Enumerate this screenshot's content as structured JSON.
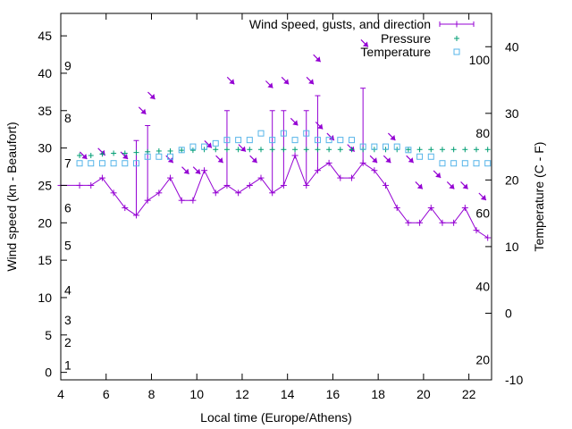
{
  "chart_data": {
    "type": "line",
    "title": "",
    "xlabel": "Local time (Europe/Athens)",
    "ylabel": "Wind speed (kn - Beaufort)",
    "y2label": "Temperature (C - F)",
    "xlim": [
      4,
      23
    ],
    "ylim": [
      -1,
      48
    ],
    "y2lim": [
      -10,
      45
    ],
    "grid": false,
    "legend_position": "top-right",
    "x_ticks": [
      4,
      6,
      8,
      10,
      12,
      14,
      16,
      18,
      20,
      22
    ],
    "y_ticks": [
      0,
      5,
      10,
      15,
      20,
      25,
      30,
      35,
      40,
      45
    ],
    "y2_ticks": [
      -10,
      0,
      10,
      20,
      30,
      40
    ],
    "beaufort_labels": [
      {
        "text": "1",
        "y": 1
      },
      {
        "text": "2",
        "y": 4
      },
      {
        "text": "3",
        "y": 7
      },
      {
        "text": "4",
        "y": 11
      },
      {
        "text": "5",
        "y": 17
      },
      {
        "text": "6",
        "y": 22
      },
      {
        "text": "7",
        "y": 28
      },
      {
        "text": "8",
        "y": 34
      },
      {
        "text": "9",
        "y": 41
      }
    ],
    "fahrenheit_labels": [
      {
        "text": "20",
        "y": -7
      },
      {
        "text": "40",
        "y": 4
      },
      {
        "text": "60",
        "y": 15
      },
      {
        "text": "80",
        "y": 27
      },
      {
        "text": "100",
        "y": 38
      }
    ],
    "series": [
      {
        "name": "Wind speed, gusts, and direction",
        "color": "#9400d3",
        "x": [
          4,
          4.83,
          5.33,
          5.83,
          6.33,
          6.83,
          7.33,
          7.83,
          8.33,
          8.83,
          9.33,
          9.83,
          10.33,
          10.83,
          11.33,
          11.83,
          12.33,
          12.83,
          13.33,
          13.83,
          14.33,
          14.83,
          15.33,
          15.83,
          16.33,
          16.83,
          17.33,
          17.83,
          18.33,
          18.83,
          19.33,
          19.83,
          20.33,
          20.83,
          21.33,
          21.83,
          22.33,
          22.83
        ],
        "values": [
          25,
          25,
          25,
          26,
          24,
          22,
          21,
          23,
          24,
          26,
          23,
          23,
          27,
          24,
          25,
          24,
          25,
          26,
          24,
          25,
          29,
          25,
          27,
          28,
          26,
          26,
          28,
          27,
          25,
          22,
          20,
          20,
          22,
          20,
          20,
          22,
          19,
          18
        ],
        "gusts": [
          null,
          null,
          null,
          null,
          null,
          null,
          31,
          33,
          null,
          null,
          null,
          null,
          null,
          null,
          35,
          null,
          null,
          null,
          35,
          35,
          null,
          35,
          37,
          null,
          null,
          null,
          38,
          null,
          null,
          null,
          null,
          null,
          null,
          null,
          null,
          null,
          null,
          null
        ]
      },
      {
        "name": "Pressure",
        "color": "#009e73",
        "x": [
          4.83,
          5.33,
          5.83,
          6.33,
          6.83,
          7.33,
          7.83,
          8.33,
          8.83,
          9.33,
          9.83,
          10.33,
          10.83,
          11.33,
          11.83,
          12.33,
          12.83,
          13.33,
          13.83,
          14.33,
          14.83,
          15.33,
          15.83,
          16.33,
          16.83,
          17.33,
          17.83,
          18.33,
          18.83,
          19.33,
          19.83,
          20.33,
          20.83,
          21.33,
          21.83,
          22.33,
          22.83
        ],
        "values": [
          29,
          29,
          29.2,
          29.3,
          29.3,
          29.4,
          29.5,
          29.6,
          29.6,
          29.7,
          29.7,
          29.8,
          29.8,
          29.8,
          29.8,
          29.8,
          29.8,
          29.8,
          29.8,
          29.8,
          29.8,
          29.8,
          29.8,
          29.8,
          29.8,
          29.8,
          29.8,
          29.8,
          29.8,
          29.8,
          29.8,
          29.8,
          29.8,
          29.8,
          29.8,
          29.8,
          29.8
        ]
      },
      {
        "name": "Temperature",
        "color": "#56b4e9",
        "x": [
          4.83,
          5.33,
          5.83,
          6.33,
          6.83,
          7.33,
          7.83,
          8.33,
          8.83,
          9.33,
          9.83,
          10.33,
          10.83,
          11.33,
          11.83,
          12.33,
          12.83,
          13.33,
          13.83,
          14.33,
          14.83,
          15.33,
          15.83,
          16.33,
          16.83,
          17.33,
          17.83,
          18.33,
          18.83,
          19.33,
          19.83,
          20.33,
          20.83,
          21.33,
          21.83,
          22.33,
          22.83
        ],
        "values": [
          22.5,
          22.5,
          22.5,
          22.5,
          22.5,
          22.5,
          23.5,
          23.5,
          23.5,
          24.5,
          25,
          25,
          25.5,
          26,
          26,
          26,
          27,
          26,
          27,
          26,
          27,
          26,
          26,
          26,
          26,
          25,
          25,
          25,
          25,
          24.5,
          23.5,
          23.5,
          22.5,
          22.5,
          22.5,
          22.5,
          22.5
        ]
      }
    ],
    "direction_arrows": [
      {
        "x": 5.0,
        "y": 29
      },
      {
        "x": 5.8,
        "y": 29.5
      },
      {
        "x": 6.8,
        "y": 29
      },
      {
        "x": 7.6,
        "y": 35
      },
      {
        "x": 8.0,
        "y": 37
      },
      {
        "x": 8.8,
        "y": 28.5
      },
      {
        "x": 9.5,
        "y": 27
      },
      {
        "x": 10.0,
        "y": 27
      },
      {
        "x": 10.5,
        "y": 30.5
      },
      {
        "x": 11.0,
        "y": 28.5
      },
      {
        "x": 11.5,
        "y": 39
      },
      {
        "x": 12.0,
        "y": 30
      },
      {
        "x": 12.5,
        "y": 28.5
      },
      {
        "x": 13.2,
        "y": 38.5
      },
      {
        "x": 13.9,
        "y": 39
      },
      {
        "x": 14.3,
        "y": 33.5
      },
      {
        "x": 15.0,
        "y": 39
      },
      {
        "x": 15.3,
        "y": 42
      },
      {
        "x": 15.4,
        "y": 33
      },
      {
        "x": 15.9,
        "y": 31.5
      },
      {
        "x": 16.8,
        "y": 30
      },
      {
        "x": 17.4,
        "y": 44
      },
      {
        "x": 17.8,
        "y": 28.5
      },
      {
        "x": 18.4,
        "y": 28.5
      },
      {
        "x": 18.6,
        "y": 31.5
      },
      {
        "x": 19.4,
        "y": 28.5
      },
      {
        "x": 19.8,
        "y": 25
      },
      {
        "x": 20.6,
        "y": 26.5
      },
      {
        "x": 21.2,
        "y": 25
      },
      {
        "x": 21.8,
        "y": 25
      },
      {
        "x": 22.6,
        "y": 23.5
      }
    ]
  }
}
